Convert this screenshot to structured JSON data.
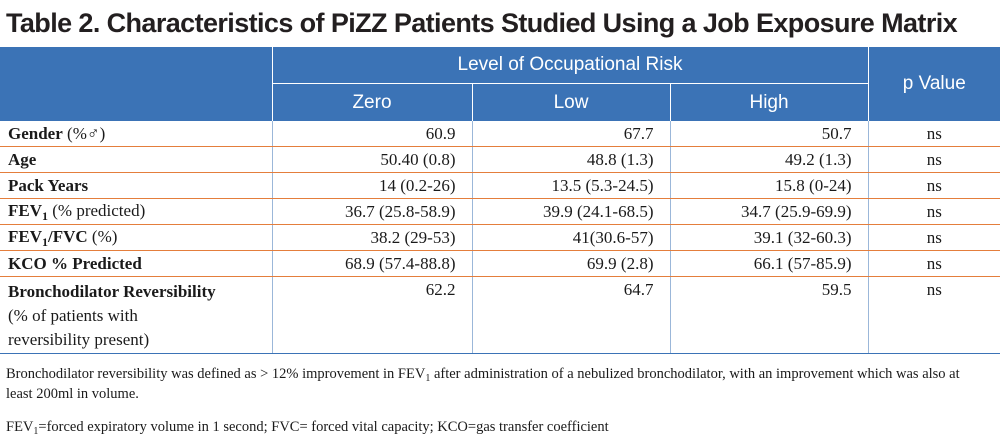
{
  "title": "Table 2. Characteristics of PiZZ Patients Studied Using a Job Exposure Matrix",
  "header": {
    "group_label": "Level of Occupational Risk",
    "p_label": "p Value",
    "columns": [
      "Zero",
      "Low",
      "High"
    ]
  },
  "rows": [
    {
      "bold": "Gender",
      "rest": " (%♂)",
      "zero": "60.9",
      "low": "67.7",
      "high": "50.7",
      "p": "ns"
    },
    {
      "bold": "Age",
      "rest": "",
      "zero": "50.40 (0.8)",
      "low": "48.8 (1.3)",
      "high": "49.2 (1.3)",
      "p": "ns"
    },
    {
      "bold": "Pack Years",
      "rest": "",
      "zero": "14 (0.2-26)",
      "low": "13.5 (5.3-24.5)",
      "high": "15.8 (0-24)",
      "p": "ns"
    },
    {
      "bold": "FEV",
      "sub": "1",
      "rest": " (% predicted)",
      "zero": "36.7 (25.8-58.9)",
      "low": "39.9 (24.1-68.5)",
      "high": "34.7 (25.9-69.9)",
      "p": "ns"
    },
    {
      "bold": "FEV",
      "sub": "1",
      "bold2": "/FVC",
      "rest": " (%)",
      "zero": "38.2 (29-53)",
      "low": "41(30.6-57)",
      "high": "39.1 (32-60.3)",
      "p": "ns"
    },
    {
      "bold": "KCO % Predicted",
      "rest": "",
      "zero": "68.9 (57.4-88.8)",
      "low": "69.9 (2.8)",
      "high": "66.1 (57-85.9)",
      "p": "ns"
    },
    {
      "bold": "Bronchodilator Reversibility",
      "line2": "(% of patients with",
      "line3": "reversibility present)",
      "zero": "62.2",
      "low": "64.7",
      "high": "59.5",
      "p": "ns"
    }
  ],
  "footnotes": {
    "note1_a": "Bronchodilator reversibility was defined as > 12% improvement in FEV",
    "note1_sub": "1",
    "note1_b": " after administration of a nebulized bronchodilator, with an improvement which was also at least 200ml in volume.",
    "note2_a": "FEV",
    "note2_sub": "1",
    "note2_b": "=forced expiratory volume in 1 second; FVC= forced vital capacity; KCO=gas transfer coefficient"
  }
}
